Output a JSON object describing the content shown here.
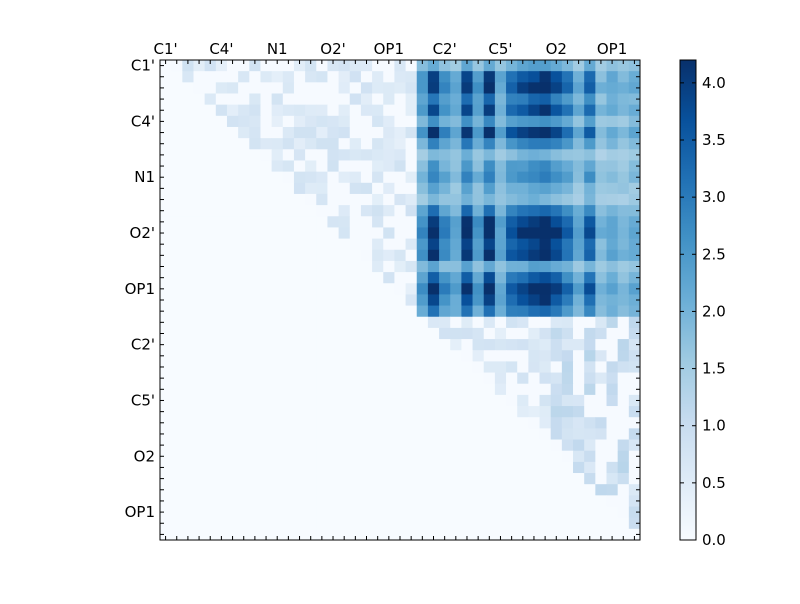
{
  "chart_data": {
    "type": "heatmap",
    "title": "",
    "xlabel": "",
    "ylabel": "",
    "n": 43,
    "x_tick_labels": [
      "C1'",
      "C4'",
      "N1",
      "O2'",
      "OP1",
      "C2'",
      "C5'",
      "O2",
      "OP1"
    ],
    "y_tick_labels": [
      "C1'",
      "C4'",
      "N1",
      "O2'",
      "OP1",
      "C2'",
      "C5'",
      "O2",
      "OP1"
    ],
    "tick_label_index_step": 5,
    "colormap": "Blues",
    "colormap_stops": [
      "#f7fbff",
      "#deebf7",
      "#c6dbef",
      "#9ecae1",
      "#6baed6",
      "#4292c6",
      "#2171b5",
      "#08519c",
      "#08306b"
    ],
    "vmin": 0.0,
    "vmax": 4.2,
    "colorbar_ticks": [
      "0.0",
      "0.5",
      "1.0",
      "1.5",
      "2.0",
      "2.5",
      "3.0",
      "3.5",
      "4.0"
    ],
    "block_high_region": {
      "rows": [
        0,
        22
      ],
      "cols": [
        23,
        42
      ],
      "approx_value_range": [
        1.2,
        4.2
      ]
    },
    "upper_triangle_low_region": {
      "approx_value_range": [
        0.0,
        1.4
      ]
    }
  }
}
